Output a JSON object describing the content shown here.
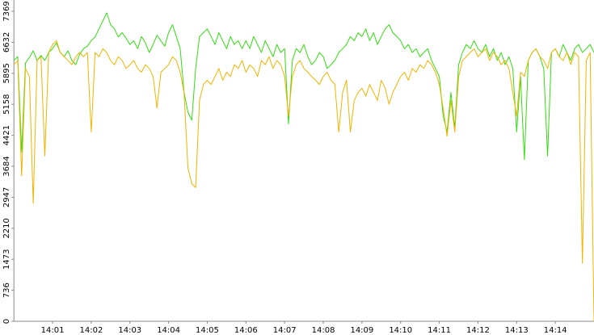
{
  "chart_data": {
    "type": "line",
    "categories": [
      null,
      null,
      null,
      null,
      null,
      null,
      null,
      null,
      null,
      null,
      "14:01",
      null,
      null,
      null,
      null,
      null,
      null,
      null,
      null,
      null,
      "14:02",
      null,
      null,
      null,
      null,
      null,
      null,
      null,
      null,
      null,
      "14:03",
      null,
      null,
      null,
      null,
      null,
      null,
      null,
      null,
      null,
      "14:04",
      null,
      null,
      null,
      null,
      null,
      null,
      null,
      null,
      null,
      "14:05",
      null,
      null,
      null,
      null,
      null,
      null,
      null,
      null,
      null,
      "14:06",
      null,
      null,
      null,
      null,
      null,
      null,
      null,
      null,
      null,
      "14:07",
      null,
      null,
      null,
      null,
      null,
      null,
      null,
      null,
      null,
      "14:08",
      null,
      null,
      null,
      null,
      null,
      null,
      null,
      null,
      null,
      "14:09",
      null,
      null,
      null,
      null,
      null,
      null,
      null,
      null,
      null,
      "14:10",
      null,
      null,
      null,
      null,
      null,
      null,
      null,
      null,
      null,
      "14:11",
      null,
      null,
      null,
      null,
      null,
      null,
      null,
      null,
      null,
      "14:12",
      null,
      null,
      null,
      null,
      null,
      null,
      null,
      null,
      null,
      "14:13",
      null,
      null,
      null,
      null,
      null,
      null,
      null,
      null,
      null,
      "14:14",
      null,
      null,
      null,
      null,
      null,
      null,
      null,
      null,
      null,
      null
    ],
    "series": [
      {
        "color": "#33dd11",
        "values": [
          6200,
          6290,
          4020,
          6140,
          6270,
          6430,
          6200,
          6320,
          6200,
          6390,
          6480,
          6620,
          6390,
          6290,
          6430,
          6200,
          6100,
          6350,
          6480,
          6540,
          6670,
          6760,
          6950,
          7140,
          7330,
          7050,
          6950,
          6760,
          6860,
          6730,
          6580,
          6670,
          6480,
          6770,
          6620,
          6390,
          6580,
          6800,
          6670,
          6540,
          6860,
          7050,
          6770,
          6480,
          5440,
          4970,
          4780,
          6010,
          6770,
          6860,
          6950,
          6770,
          6580,
          6860,
          6670,
          6480,
          6770,
          6580,
          6670,
          6480,
          6670,
          6480,
          6770,
          6580,
          6390,
          6670,
          6480,
          6290,
          6580,
          6390,
          6480,
          4690,
          6200,
          6480,
          6390,
          6580,
          6290,
          6100,
          6200,
          6390,
          6290,
          6010,
          6100,
          6200,
          6390,
          6480,
          6580,
          6770,
          6670,
          6860,
          6770,
          6950,
          6670,
          6860,
          6580,
          6770,
          6950,
          7050,
          6860,
          6770,
          6670,
          6480,
          6580,
          6390,
          6480,
          6290,
          6390,
          6480,
          6200,
          6010,
          5820,
          4880,
          4500,
          5440,
          4590,
          6100,
          6390,
          6580,
          6480,
          6670,
          6480,
          6390,
          6580,
          6290,
          6480,
          6200,
          6390,
          6100,
          6290,
          6010,
          4500,
          5820,
          3840,
          6200,
          6390,
          6480,
          6290,
          6010,
          3930,
          6390,
          6480,
          6290,
          6580,
          6390,
          6200,
          6480,
          6580,
          6390,
          6480,
          6580,
          6390
        ]
      },
      {
        "color": "#f0b400",
        "values": [
          6100,
          6200,
          3460,
          6010,
          5820,
          2800,
          6200,
          6290,
          3930,
          6390,
          6580,
          6670,
          6390,
          6290,
          6200,
          6100,
          6290,
          6390,
          6290,
          6390,
          4500,
          6390,
          6290,
          6480,
          6390,
          6200,
          6100,
          6290,
          6200,
          6010,
          6100,
          6200,
          6010,
          5920,
          6100,
          6010,
          5820,
          5070,
          5920,
          6010,
          6100,
          6290,
          6200,
          5920,
          5440,
          3650,
          3270,
          3180,
          5250,
          5630,
          5730,
          5630,
          5820,
          6010,
          5730,
          5920,
          5820,
          6100,
          6010,
          6200,
          5920,
          6100,
          6010,
          5820,
          6200,
          6100,
          6290,
          6010,
          6200,
          6100,
          5820,
          4880,
          5820,
          6100,
          6200,
          6010,
          5920,
          5820,
          5730,
          5630,
          5820,
          5920,
          5730,
          5630,
          4500,
          5440,
          5730,
          4500,
          5250,
          5440,
          5540,
          5350,
          5630,
          5440,
          5250,
          5730,
          5540,
          5160,
          5440,
          5630,
          5820,
          5920,
          5730,
          6010,
          5920,
          6100,
          6010,
          6200,
          6100,
          5920,
          5630,
          5070,
          4400,
          5250,
          4500,
          5820,
          6200,
          6290,
          6390,
          6480,
          6290,
          6390,
          6480,
          6200,
          6390,
          6290,
          6100,
          6200,
          6010,
          5440,
          4880,
          5920,
          5820,
          6200,
          6390,
          6480,
          6290,
          6200,
          6010,
          6390,
          6480,
          6290,
          6200,
          6390,
          6100,
          6390,
          6290,
          1380,
          6200,
          6390,
          0
        ]
      }
    ],
    "ylim": [
      0,
      7369
    ],
    "yticks": [
      0,
      736,
      1473,
      2210,
      2947,
      3684,
      4421,
      5158,
      5895,
      6632,
      7369
    ]
  }
}
